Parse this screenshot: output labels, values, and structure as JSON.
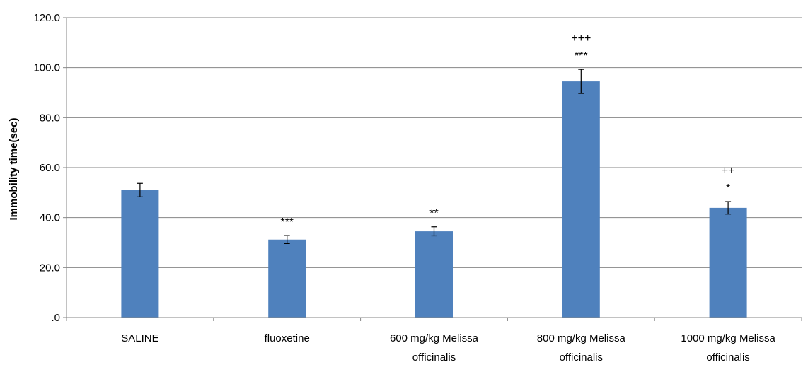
{
  "chart_data": {
    "type": "bar",
    "title": "",
    "xlabel": "",
    "ylabel": "Immobility time(sec)",
    "ylim": [
      0,
      120
    ],
    "yticks": [
      0,
      20,
      40,
      60,
      80,
      100,
      120
    ],
    "ytick_labels": [
      ".0",
      "20.0",
      "40.0",
      "60.0",
      "80.0",
      "100.0",
      "120.0"
    ],
    "grid": true,
    "legend": "none",
    "bar_color": "#4f81bd",
    "categories": [
      [
        "SALINE"
      ],
      [
        "fluoxetine"
      ],
      [
        "600 mg/kg  Melissa",
        "officinalis"
      ],
      [
        "800 mg/kg Melissa",
        "officinalis"
      ],
      [
        "1000 mg/kg Melissa",
        "officinalis"
      ]
    ],
    "values": [
      51.0,
      31.2,
      34.5,
      94.5,
      43.9
    ],
    "errors": [
      2.7,
      1.6,
      1.8,
      4.8,
      2.5
    ],
    "annotations": [
      [],
      [
        "***"
      ],
      [
        "**"
      ],
      [
        "+++",
        "***"
      ],
      [
        "++",
        "*"
      ]
    ]
  }
}
